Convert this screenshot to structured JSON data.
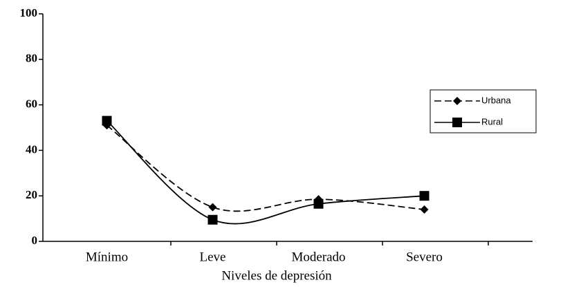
{
  "chart_data": {
    "type": "line",
    "x_label": "Niveles de depresión",
    "categories": [
      "Mínimo",
      "Leve",
      "Moderado",
      "Severo"
    ],
    "series": [
      {
        "name": "Urbana",
        "color": "#000000",
        "dash": true,
        "marker": "diamond",
        "values": [
          51,
          15,
          18.5,
          14
        ]
      },
      {
        "name": "Rural",
        "color": "#000000",
        "dash": false,
        "marker": "square",
        "values": [
          53,
          9.5,
          16.5,
          20
        ]
      }
    ],
    "ylim": [
      0,
      100
    ],
    "yticks": [
      0,
      20,
      40,
      60,
      80,
      100
    ],
    "grid": false,
    "legend": "right"
  }
}
